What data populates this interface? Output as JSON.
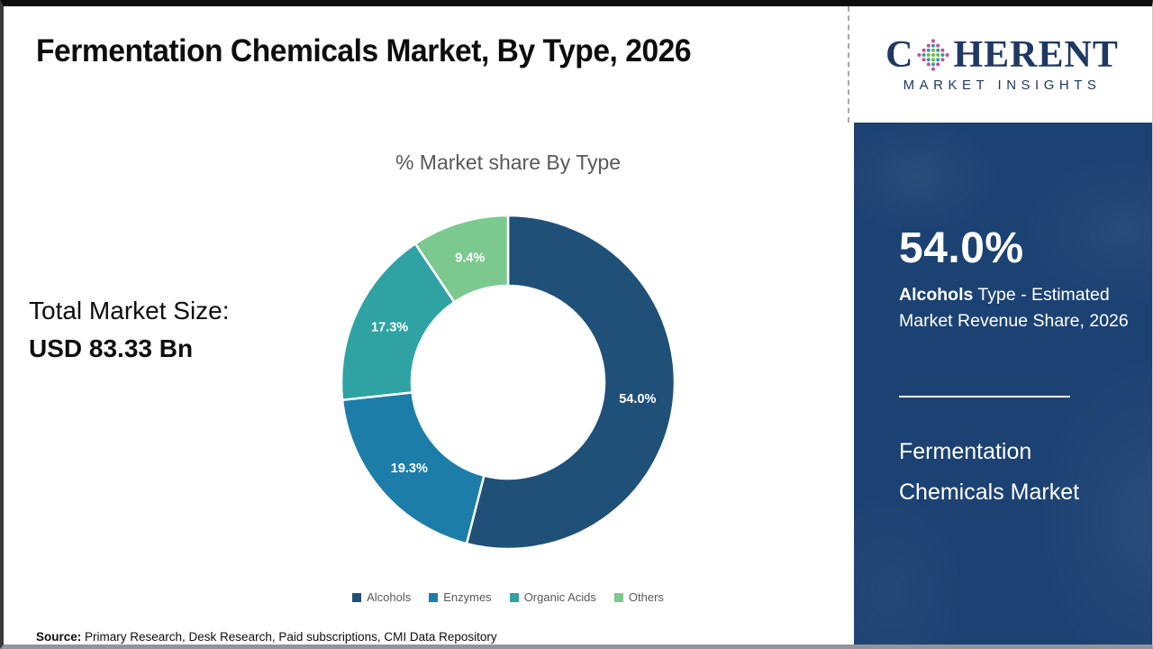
{
  "page": {
    "title": "Fermentation Chemicals Market, By Type, 2026",
    "total_market_label": "Total Market Size:",
    "total_market_value": "USD 83.33 Bn",
    "source_label": "Source:",
    "source_text": " Primary Research, Desk Research, Paid subscriptions, CMI Data Repository"
  },
  "logo": {
    "word_start": "C",
    "word_end": "HERENT",
    "subtitle": "MARKET INSIGHTS",
    "brand_color": "#1f3864",
    "o_dot_colors": [
      "#6cbe45",
      "#2e9ca6",
      "#8e3a96",
      "#c84e9b"
    ]
  },
  "sidebar": {
    "stat_value": "54.0%",
    "stat_label_bold": "Alcohols",
    "stat_label_rest": " Type - Estimated Market Revenue Share, 2026",
    "product_title": "Fermentation Chemicals Market",
    "background_color": "#1c4273"
  },
  "chart_data": {
    "type": "pie",
    "subtype": "donut",
    "title": "% Market share By Type",
    "categories": [
      "Alcohols",
      "Enzymes",
      "Organic Acids",
      "Others"
    ],
    "values": [
      54.0,
      19.3,
      17.3,
      9.4
    ],
    "data_labels": [
      "54.0%",
      "19.3%",
      "17.3%",
      "9.4%"
    ],
    "colors": [
      "#1f5078",
      "#1c7ea8",
      "#2fa3a3",
      "#7cc98f"
    ],
    "start_angle_deg": 0,
    "direction": "clockwise",
    "legend_position": "bottom",
    "total": "USD 83.33 Bn"
  }
}
